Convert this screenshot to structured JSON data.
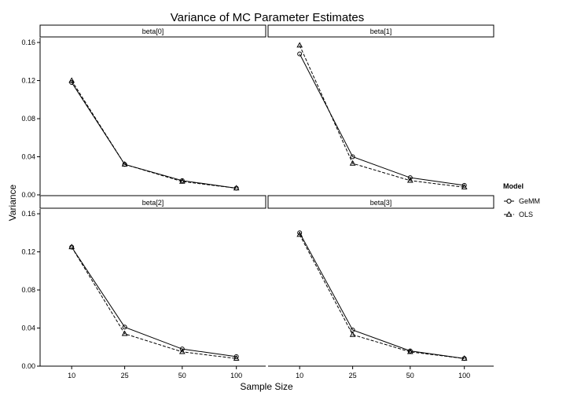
{
  "chart_data": {
    "type": "line",
    "title": "Variance of MC Parameter Estimates",
    "xlabel": "Sample Size",
    "ylabel": "Variance",
    "x_categories": [
      "10",
      "25",
      "50",
      "100"
    ],
    "yticks": [
      "0.00",
      "0.04",
      "0.08",
      "0.12",
      "0.16"
    ],
    "ylim": [
      0,
      0.165
    ],
    "grid": false,
    "legend": {
      "title": "Model",
      "position": "right",
      "entries": [
        {
          "name": "GeMM",
          "marker": "circle",
          "linestyle": "solid"
        },
        {
          "name": "OLS",
          "marker": "triangle",
          "linestyle": "dashed"
        }
      ]
    },
    "panels": [
      {
        "strip": "beta[0]",
        "series": [
          {
            "name": "GeMM",
            "values": [
              0.118,
              0.032,
              0.015,
              0.007
            ]
          },
          {
            "name": "OLS",
            "values": [
              0.12,
              0.032,
              0.014,
              0.007
            ]
          }
        ]
      },
      {
        "strip": "beta[1]",
        "series": [
          {
            "name": "GeMM",
            "values": [
              0.148,
              0.04,
              0.018,
              0.01
            ]
          },
          {
            "name": "OLS",
            "values": [
              0.157,
              0.033,
              0.015,
              0.008
            ]
          }
        ]
      },
      {
        "strip": "beta[2]",
        "series": [
          {
            "name": "GeMM",
            "values": [
              0.125,
              0.041,
              0.018,
              0.01
            ]
          },
          {
            "name": "OLS",
            "values": [
              0.125,
              0.034,
              0.015,
              0.008
            ]
          }
        ]
      },
      {
        "strip": "beta[3]",
        "series": [
          {
            "name": "GeMM",
            "values": [
              0.14,
              0.038,
              0.016,
              0.008
            ]
          },
          {
            "name": "OLS",
            "values": [
              0.138,
              0.033,
              0.015,
              0.008
            ]
          }
        ]
      }
    ]
  }
}
